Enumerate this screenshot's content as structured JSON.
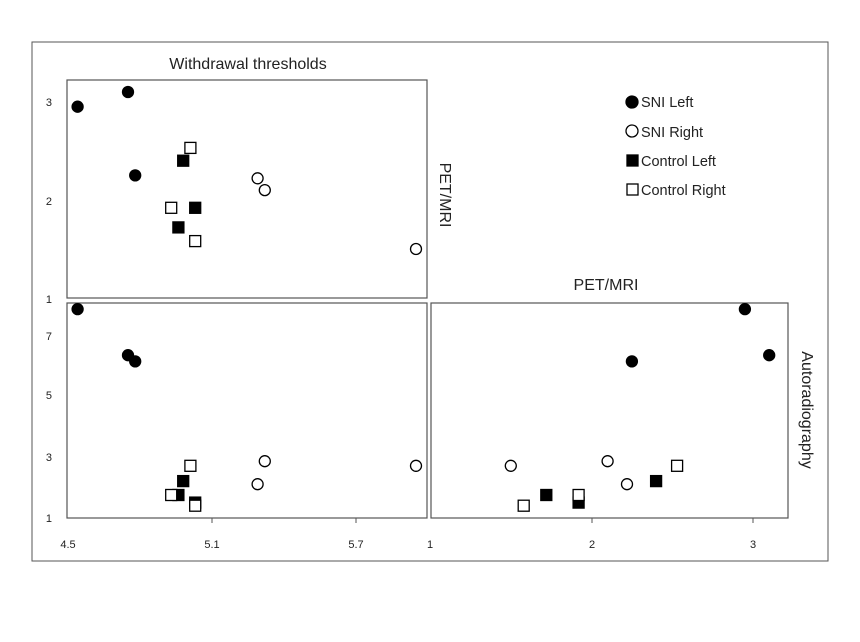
{
  "colors": {
    "frame": "#555555",
    "marker": "#000000",
    "background": "#ffffff"
  },
  "legend": {
    "placement": "top-right",
    "entries": [
      {
        "label": "SNI Left",
        "marker": "filled-circle"
      },
      {
        "label": "SNI Right",
        "marker": "open-circle"
      },
      {
        "label": "Control Left",
        "marker": "filled-square"
      },
      {
        "label": "Control Right",
        "marker": "open-square"
      }
    ]
  },
  "chart_data": [
    {
      "type": "scatter",
      "panel": "top-left",
      "title": "Withdrawal thresholds",
      "side_label": "PET/MRI",
      "xlim": [
        4.5,
        6.0
      ],
      "ylim": [
        1,
        3.1
      ],
      "yticks": [
        "3",
        "2",
        "1"
      ],
      "series": [
        {
          "name": "SNI Left",
          "marker": "filled-circle",
          "points": [
            [
              4.54,
              2.95
            ],
            [
              4.75,
              3.1
            ],
            [
              4.78,
              2.25
            ]
          ]
        },
        {
          "name": "SNI Right",
          "marker": "open-circle",
          "points": [
            [
              5.29,
              2.22
            ],
            [
              5.32,
              2.1
            ],
            [
              5.95,
              1.5
            ]
          ]
        },
        {
          "name": "Control Left",
          "marker": "filled-square",
          "points": [
            [
              4.98,
              2.4
            ],
            [
              4.96,
              1.72
            ],
            [
              5.03,
              1.92
            ]
          ]
        },
        {
          "name": "Control Right",
          "marker": "open-square",
          "points": [
            [
              5.01,
              2.53
            ],
            [
              4.93,
              1.92
            ],
            [
              5.03,
              1.58
            ]
          ]
        }
      ]
    },
    {
      "type": "scatter",
      "panel": "bottom-left",
      "side_label": "",
      "xlim": [
        4.5,
        6.0
      ],
      "ylim": [
        1,
        8
      ],
      "xticks": [
        "4.5",
        "5.1",
        "5.7"
      ],
      "yticks": [
        "7",
        "5",
        "3",
        "1"
      ],
      "series": [
        {
          "name": "SNI Left",
          "marker": "filled-circle",
          "points": [
            [
              4.54,
              7.8
            ],
            [
              4.75,
              6.3
            ],
            [
              4.78,
              6.1
            ]
          ]
        },
        {
          "name": "SNI Right",
          "marker": "open-circle",
          "points": [
            [
              5.29,
              2.1
            ],
            [
              5.32,
              2.85
            ],
            [
              5.95,
              2.7
            ]
          ]
        },
        {
          "name": "Control Left",
          "marker": "filled-square",
          "points": [
            [
              4.98,
              2.2
            ],
            [
              4.96,
              1.75
            ],
            [
              5.03,
              1.5
            ]
          ]
        },
        {
          "name": "Control Right",
          "marker": "open-square",
          "points": [
            [
              5.01,
              2.7
            ],
            [
              4.93,
              1.75
            ],
            [
              5.03,
              1.4
            ]
          ]
        }
      ]
    },
    {
      "type": "scatter",
      "panel": "bottom-right",
      "title": "PET/MRI",
      "side_label": "Autoradiography",
      "xlim": [
        1,
        3.2
      ],
      "ylim": [
        1,
        8
      ],
      "xticks": [
        "1",
        "2",
        "3"
      ],
      "series": [
        {
          "name": "SNI Left",
          "marker": "filled-circle",
          "points": [
            [
              2.25,
              6.1
            ],
            [
              2.95,
              7.8
            ],
            [
              3.1,
              6.3
            ]
          ]
        },
        {
          "name": "SNI Right",
          "marker": "open-circle",
          "points": [
            [
              1.5,
              2.7
            ],
            [
              2.1,
              2.85
            ],
            [
              2.22,
              2.1
            ]
          ]
        },
        {
          "name": "Control Left",
          "marker": "filled-square",
          "points": [
            [
              1.72,
              1.75
            ],
            [
              1.92,
              1.5
            ],
            [
              2.4,
              2.2
            ]
          ]
        },
        {
          "name": "Control Right",
          "marker": "open-square",
          "points": [
            [
              1.58,
              1.4
            ],
            [
              1.92,
              1.75
            ],
            [
              2.53,
              2.7
            ]
          ]
        }
      ]
    }
  ]
}
